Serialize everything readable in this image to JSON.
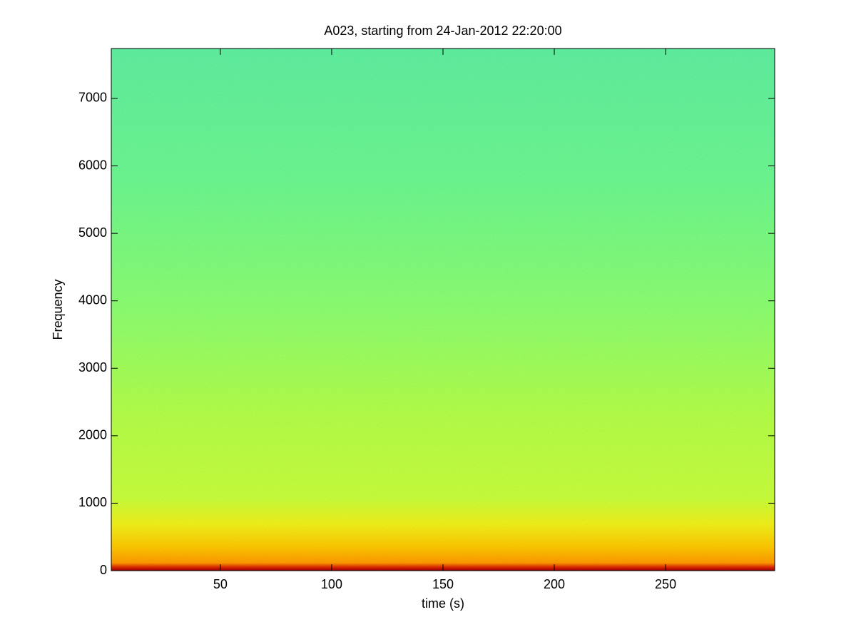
{
  "chart_data": {
    "type": "spectrogram",
    "title": "A023, starting from 24-Jan-2012 22:20:00",
    "xlabel": "time (s)",
    "ylabel": "Frequency",
    "xlim": [
      1,
      299
    ],
    "xticks": [
      50,
      100,
      150,
      200,
      250
    ],
    "ylim": [
      0,
      7740
    ],
    "yticks": [
      0,
      1000,
      2000,
      3000,
      4000,
      5000,
      6000,
      7000
    ]
  }
}
